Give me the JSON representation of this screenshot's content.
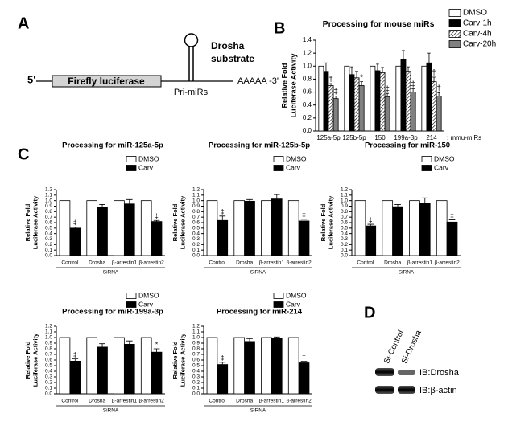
{
  "panel_labels": [
    "A",
    "B",
    "C",
    "D"
  ],
  "diagram": {
    "five_prime": "5'",
    "gene": "Firefly luciferase",
    "hairpin": "Pri-miRs",
    "tail": "AAAAA -3'",
    "substrate": [
      "Drosha",
      "substrate"
    ]
  },
  "blot": {
    "lanes": [
      "Si-Control",
      "Si-Drosha"
    ],
    "rows": [
      "IB:Drosha",
      "IB:β-actin"
    ]
  },
  "chart_data": [
    {
      "type": "bar",
      "title": "Processing for mouse miRs",
      "y_label": [
        "Relative Fold",
        "Luciferase Activity"
      ],
      "categories": [
        "125a-5p",
        "125b-5p",
        "150",
        "199a-3p",
        "214"
      ],
      "x_note": ": mmu-miRs",
      "ylim": [
        0,
        1.4
      ],
      "yticks": [
        {
          "value": 0,
          "label": "0.0"
        },
        0.2,
        0.4,
        0.6,
        0.8,
        {
          "value": 1,
          "label": "1.0"
        },
        1.2,
        1.4
      ],
      "legend": "outside right",
      "series": [
        {
          "name": "DMSO",
          "color": "#ffffff",
          "values": [
            1.0,
            1.0,
            1.0,
            1.0,
            1.0
          ]
        },
        {
          "name": "Carv-1h",
          "color": "#000000",
          "values": [
            0.92,
            0.87,
            0.93,
            1.1,
            1.05
          ],
          "errors": [
            0.13,
            0.12,
            0.1,
            0.14,
            0.15
          ]
        },
        {
          "name": "Carv-4h",
          "color": "#ffffff",
          "hatched": true,
          "values": [
            0.7,
            0.82,
            0.9,
            0.92,
            0.76
          ],
          "errors": [
            0.03,
            0.1,
            0.08,
            0.07,
            0.07
          ],
          "significance": [
            "†",
            null,
            null,
            null,
            "†"
          ]
        },
        {
          "name": "Carv-20h",
          "color": "#808080",
          "values": [
            0.5,
            0.7,
            0.53,
            0.6,
            0.54
          ],
          "errors": [
            0.04,
            0.06,
            0.05,
            0.05,
            0.05
          ],
          "significance": [
            "‡",
            "*",
            "‡",
            "‡",
            "†"
          ]
        }
      ]
    },
    {
      "type": "bar",
      "title": "Processing for miR-125a-5p",
      "y_label": [
        "Relative Fold",
        "Luciferase Activity"
      ],
      "categories": [
        "Control",
        "Drosha",
        "β-arrestin1",
        "β-arrestin2"
      ],
      "x_label": "SiRNA",
      "ylim": [
        0,
        1.2
      ],
      "yticks": [
        {
          "value": 0,
          "label": "0.0"
        },
        0.1,
        0.2,
        0.3,
        0.4,
        0.5,
        0.6,
        0.7,
        0.8,
        0.9,
        {
          "value": 1,
          "label": "1.0"
        },
        1.1,
        1.2
      ],
      "legend": "upper right",
      "series": [
        {
          "name": "DMSO",
          "color": "#ffffff",
          "values": [
            1.0,
            1.0,
            1.0,
            1.0
          ]
        },
        {
          "name": "Carv",
          "color": "#000000",
          "values": [
            0.5,
            0.88,
            0.94,
            0.62
          ],
          "errors": [
            0.02,
            0.05,
            0.08,
            0.02
          ],
          "significance": [
            "‡",
            null,
            null,
            "‡"
          ]
        }
      ]
    },
    {
      "type": "bar",
      "title": "Processing for miR-125b-5p",
      "y_label": [
        "Relative Fold",
        "Luciferase Activity"
      ],
      "categories": [
        "Control",
        "Drosha",
        "β-arrestin1",
        "β-arrestin2"
      ],
      "x_label": "SiRNA",
      "ylim": [
        0,
        1.2
      ],
      "yticks": [
        {
          "value": 0,
          "label": "0.0"
        },
        0.1,
        0.2,
        0.3,
        0.4,
        0.5,
        0.6,
        0.7,
        0.8,
        0.9,
        {
          "value": 1,
          "label": "1.0"
        },
        1.1,
        1.2
      ],
      "legend": "upper right",
      "series": [
        {
          "name": "DMSO",
          "color": "#ffffff",
          "values": [
            1.0,
            1.0,
            1.0,
            1.0
          ]
        },
        {
          "name": "Carv",
          "color": "#000000",
          "values": [
            0.64,
            0.99,
            1.03,
            0.63
          ],
          "errors": [
            0.08,
            0.03,
            0.08,
            0.03
          ],
          "significance": [
            "‡",
            null,
            null,
            "‡"
          ]
        }
      ]
    },
    {
      "type": "bar",
      "title": "Processing for miR-150",
      "y_label": [
        "Relative Fold",
        "Luciferase Activity"
      ],
      "categories": [
        "Control",
        "Drosha",
        "β-arrestin1",
        "β-arrestin2"
      ],
      "x_label": "SiRNA",
      "ylim": [
        0,
        1.2
      ],
      "yticks": [
        {
          "value": 0,
          "label": "0.0"
        },
        0.1,
        0.2,
        0.3,
        0.4,
        0.5,
        0.6,
        0.7,
        0.8,
        0.9,
        {
          "value": 1,
          "label": "1.0"
        },
        1.1,
        1.2
      ],
      "legend": "upper right",
      "series": [
        {
          "name": "DMSO",
          "color": "#ffffff",
          "values": [
            1.0,
            1.0,
            1.0,
            1.0
          ]
        },
        {
          "name": "Carv",
          "color": "#000000",
          "values": [
            0.54,
            0.89,
            0.96,
            0.61
          ],
          "errors": [
            0.03,
            0.04,
            0.09,
            0.04
          ],
          "significance": [
            "‡",
            null,
            null,
            "‡"
          ]
        }
      ]
    },
    {
      "type": "bar",
      "title": "Processing for miR-199a-3p",
      "y_label": [
        "Relative Fold",
        "Luciferase Activity"
      ],
      "categories": [
        "Control",
        "Drosha",
        "β-arrestin1",
        "β-arrestin2"
      ],
      "x_label": "SiRNA",
      "ylim": [
        0,
        1.2
      ],
      "yticks": [
        {
          "value": 0,
          "label": "0.0"
        },
        0.1,
        0.2,
        0.3,
        0.4,
        0.5,
        0.6,
        0.7,
        0.8,
        0.9,
        {
          "value": 1,
          "label": "1.0"
        },
        1.1,
        1.2
      ],
      "legend": "upper right",
      "series": [
        {
          "name": "DMSO",
          "color": "#ffffff",
          "values": [
            1.0,
            1.0,
            1.0,
            1.0
          ]
        },
        {
          "name": "Carv",
          "color": "#000000",
          "values": [
            0.58,
            0.83,
            0.88,
            0.74
          ],
          "errors": [
            0.04,
            0.06,
            0.06,
            0.06
          ],
          "significance": [
            "‡",
            null,
            null,
            "*"
          ]
        }
      ]
    },
    {
      "type": "bar",
      "title": "Processing for miR-214",
      "y_label": [
        "Relative Fold",
        "Luciferase Activity"
      ],
      "categories": [
        "Control",
        "Drosha",
        "β-arrestin1",
        "β-arrestin2"
      ],
      "x_label": "SiRNA",
      "ylim": [
        0,
        1.2
      ],
      "yticks": [
        {
          "value": 0,
          "label": "0.0"
        },
        0.1,
        0.2,
        0.3,
        0.4,
        0.5,
        0.6,
        0.7,
        0.8,
        0.9,
        {
          "value": 1,
          "label": "1.0"
        },
        1.1,
        1.2
      ],
      "legend": "upper right",
      "series": [
        {
          "name": "DMSO",
          "color": "#ffffff",
          "values": [
            1.0,
            1.0,
            1.0,
            1.0
          ]
        },
        {
          "name": "Carv",
          "color": "#000000",
          "values": [
            0.52,
            0.93,
            0.98,
            0.55
          ],
          "errors": [
            0.04,
            0.05,
            0.03,
            0.03
          ],
          "significance": [
            "‡",
            null,
            null,
            "‡"
          ]
        }
      ]
    }
  ]
}
